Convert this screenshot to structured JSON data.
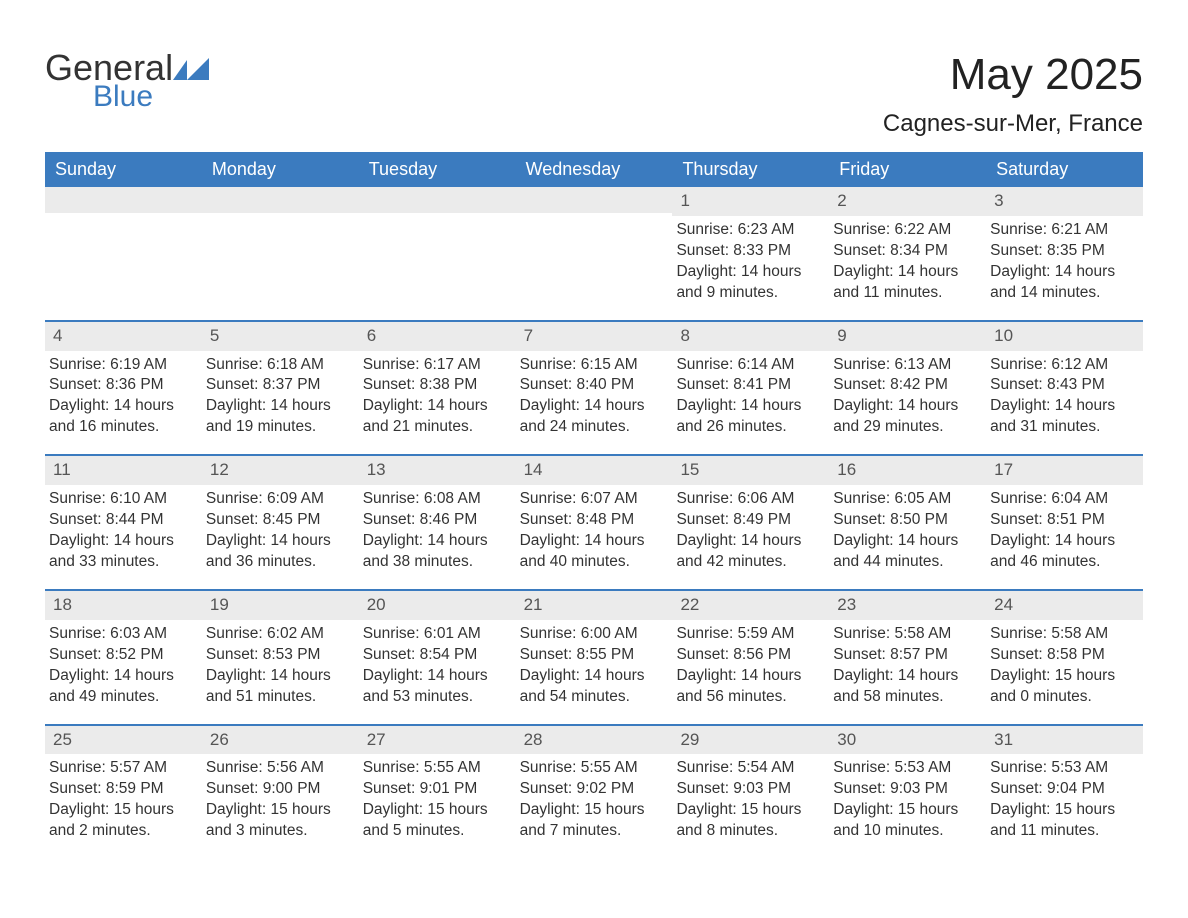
{
  "logo": {
    "line1": "General",
    "line2": "Blue"
  },
  "title": "May 2025",
  "location": "Cagnes-sur-Mer, France",
  "colors": {
    "header_bg": "#3b7bbf",
    "header_text": "#ffffff",
    "daynum_bg": "#ebebeb",
    "text": "#333333",
    "page_bg": "#ffffff"
  },
  "fonts": {
    "title_pt": 44,
    "location_pt": 24,
    "header_pt": 18,
    "body_pt": 15.5
  },
  "day_headers": [
    "Sunday",
    "Monday",
    "Tuesday",
    "Wednesday",
    "Thursday",
    "Friday",
    "Saturday"
  ],
  "weeks": [
    [
      {
        "n": "",
        "sunrise": "",
        "sunset": "",
        "daylight": ""
      },
      {
        "n": "",
        "sunrise": "",
        "sunset": "",
        "daylight": ""
      },
      {
        "n": "",
        "sunrise": "",
        "sunset": "",
        "daylight": ""
      },
      {
        "n": "",
        "sunrise": "",
        "sunset": "",
        "daylight": ""
      },
      {
        "n": "1",
        "sunrise": "Sunrise: 6:23 AM",
        "sunset": "Sunset: 8:33 PM",
        "daylight": "Daylight: 14 hours and 9 minutes."
      },
      {
        "n": "2",
        "sunrise": "Sunrise: 6:22 AM",
        "sunset": "Sunset: 8:34 PM",
        "daylight": "Daylight: 14 hours and 11 minutes."
      },
      {
        "n": "3",
        "sunrise": "Sunrise: 6:21 AM",
        "sunset": "Sunset: 8:35 PM",
        "daylight": "Daylight: 14 hours and 14 minutes."
      }
    ],
    [
      {
        "n": "4",
        "sunrise": "Sunrise: 6:19 AM",
        "sunset": "Sunset: 8:36 PM",
        "daylight": "Daylight: 14 hours and 16 minutes."
      },
      {
        "n": "5",
        "sunrise": "Sunrise: 6:18 AM",
        "sunset": "Sunset: 8:37 PM",
        "daylight": "Daylight: 14 hours and 19 minutes."
      },
      {
        "n": "6",
        "sunrise": "Sunrise: 6:17 AM",
        "sunset": "Sunset: 8:38 PM",
        "daylight": "Daylight: 14 hours and 21 minutes."
      },
      {
        "n": "7",
        "sunrise": "Sunrise: 6:15 AM",
        "sunset": "Sunset: 8:40 PM",
        "daylight": "Daylight: 14 hours and 24 minutes."
      },
      {
        "n": "8",
        "sunrise": "Sunrise: 6:14 AM",
        "sunset": "Sunset: 8:41 PM",
        "daylight": "Daylight: 14 hours and 26 minutes."
      },
      {
        "n": "9",
        "sunrise": "Sunrise: 6:13 AM",
        "sunset": "Sunset: 8:42 PM",
        "daylight": "Daylight: 14 hours and 29 minutes."
      },
      {
        "n": "10",
        "sunrise": "Sunrise: 6:12 AM",
        "sunset": "Sunset: 8:43 PM",
        "daylight": "Daylight: 14 hours and 31 minutes."
      }
    ],
    [
      {
        "n": "11",
        "sunrise": "Sunrise: 6:10 AM",
        "sunset": "Sunset: 8:44 PM",
        "daylight": "Daylight: 14 hours and 33 minutes."
      },
      {
        "n": "12",
        "sunrise": "Sunrise: 6:09 AM",
        "sunset": "Sunset: 8:45 PM",
        "daylight": "Daylight: 14 hours and 36 minutes."
      },
      {
        "n": "13",
        "sunrise": "Sunrise: 6:08 AM",
        "sunset": "Sunset: 8:46 PM",
        "daylight": "Daylight: 14 hours and 38 minutes."
      },
      {
        "n": "14",
        "sunrise": "Sunrise: 6:07 AM",
        "sunset": "Sunset: 8:48 PM",
        "daylight": "Daylight: 14 hours and 40 minutes."
      },
      {
        "n": "15",
        "sunrise": "Sunrise: 6:06 AM",
        "sunset": "Sunset: 8:49 PM",
        "daylight": "Daylight: 14 hours and 42 minutes."
      },
      {
        "n": "16",
        "sunrise": "Sunrise: 6:05 AM",
        "sunset": "Sunset: 8:50 PM",
        "daylight": "Daylight: 14 hours and 44 minutes."
      },
      {
        "n": "17",
        "sunrise": "Sunrise: 6:04 AM",
        "sunset": "Sunset: 8:51 PM",
        "daylight": "Daylight: 14 hours and 46 minutes."
      }
    ],
    [
      {
        "n": "18",
        "sunrise": "Sunrise: 6:03 AM",
        "sunset": "Sunset: 8:52 PM",
        "daylight": "Daylight: 14 hours and 49 minutes."
      },
      {
        "n": "19",
        "sunrise": "Sunrise: 6:02 AM",
        "sunset": "Sunset: 8:53 PM",
        "daylight": "Daylight: 14 hours and 51 minutes."
      },
      {
        "n": "20",
        "sunrise": "Sunrise: 6:01 AM",
        "sunset": "Sunset: 8:54 PM",
        "daylight": "Daylight: 14 hours and 53 minutes."
      },
      {
        "n": "21",
        "sunrise": "Sunrise: 6:00 AM",
        "sunset": "Sunset: 8:55 PM",
        "daylight": "Daylight: 14 hours and 54 minutes."
      },
      {
        "n": "22",
        "sunrise": "Sunrise: 5:59 AM",
        "sunset": "Sunset: 8:56 PM",
        "daylight": "Daylight: 14 hours and 56 minutes."
      },
      {
        "n": "23",
        "sunrise": "Sunrise: 5:58 AM",
        "sunset": "Sunset: 8:57 PM",
        "daylight": "Daylight: 14 hours and 58 minutes."
      },
      {
        "n": "24",
        "sunrise": "Sunrise: 5:58 AM",
        "sunset": "Sunset: 8:58 PM",
        "daylight": "Daylight: 15 hours and 0 minutes."
      }
    ],
    [
      {
        "n": "25",
        "sunrise": "Sunrise: 5:57 AM",
        "sunset": "Sunset: 8:59 PM",
        "daylight": "Daylight: 15 hours and 2 minutes."
      },
      {
        "n": "26",
        "sunrise": "Sunrise: 5:56 AM",
        "sunset": "Sunset: 9:00 PM",
        "daylight": "Daylight: 15 hours and 3 minutes."
      },
      {
        "n": "27",
        "sunrise": "Sunrise: 5:55 AM",
        "sunset": "Sunset: 9:01 PM",
        "daylight": "Daylight: 15 hours and 5 minutes."
      },
      {
        "n": "28",
        "sunrise": "Sunrise: 5:55 AM",
        "sunset": "Sunset: 9:02 PM",
        "daylight": "Daylight: 15 hours and 7 minutes."
      },
      {
        "n": "29",
        "sunrise": "Sunrise: 5:54 AM",
        "sunset": "Sunset: 9:03 PM",
        "daylight": "Daylight: 15 hours and 8 minutes."
      },
      {
        "n": "30",
        "sunrise": "Sunrise: 5:53 AM",
        "sunset": "Sunset: 9:03 PM",
        "daylight": "Daylight: 15 hours and 10 minutes."
      },
      {
        "n": "31",
        "sunrise": "Sunrise: 5:53 AM",
        "sunset": "Sunset: 9:04 PM",
        "daylight": "Daylight: 15 hours and 11 minutes."
      }
    ]
  ]
}
